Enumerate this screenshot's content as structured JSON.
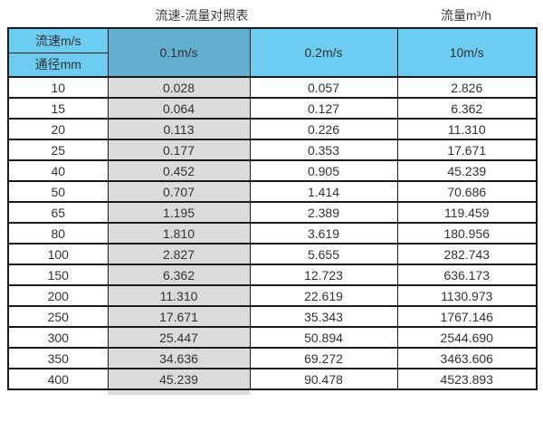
{
  "chart_data": {
    "type": "table",
    "title": "流速-流量对照表",
    "unit_label": "流量m³/h",
    "corner": {
      "top_label": "流速m/s",
      "bottom_label": "通径mm"
    },
    "column_headers": [
      "0.1m/s",
      "0.2m/s",
      "10m/s"
    ],
    "highlighted_column": "0.1m/s",
    "rows": [
      [
        "10",
        "0.028",
        "0.057",
        "2.826"
      ],
      [
        "15",
        "0.064",
        "0.127",
        "6.362"
      ],
      [
        "20",
        "0.113",
        "0.226",
        "11.310"
      ],
      [
        "25",
        "0.177",
        "0.353",
        "17.671"
      ],
      [
        "40",
        "0.452",
        "0.905",
        "45.239"
      ],
      [
        "50",
        "0.707",
        "1.414",
        "70.686"
      ],
      [
        "65",
        "1.195",
        "2.389",
        "119.459"
      ],
      [
        "80",
        "1.810",
        "3.619",
        "180.956"
      ],
      [
        "100",
        "2.827",
        "5.655",
        "282.743"
      ],
      [
        "150",
        "6.362",
        "12.723",
        "636.173"
      ],
      [
        "200",
        "11.310",
        "22.619",
        "1130.973"
      ],
      [
        "250",
        "17.671",
        "35.343",
        "1767.146"
      ],
      [
        "300",
        "25.447",
        "50.894",
        "2544.690"
      ],
      [
        "350",
        "34.636",
        "69.272",
        "3463.606"
      ],
      [
        "400",
        "45.239",
        "90.478",
        "4523.893"
      ]
    ]
  },
  "colors": {
    "header_light_blue": "#6CCDF1",
    "header_dark_blue": "#62AFD0",
    "highlight_column_gray": "#DBDBDB",
    "border": "#1A1A1A",
    "text": "#333333"
  }
}
